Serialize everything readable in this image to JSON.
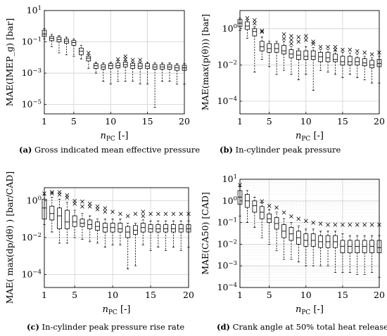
{
  "captions": {
    "a": {
      "label": "(a)",
      "text": "Gross indicated mean effective pressure"
    },
    "b": {
      "label": "(b)",
      "text": "In-cylinder peak pressure"
    },
    "c": {
      "label": "(c)",
      "text": "In-cylinder peak pressure rise rate"
    },
    "d": {
      "label": "(d)",
      "text": "Crank angle at 50% total heat release"
    }
  },
  "chart_data": [
    {
      "id": "a",
      "type": "box",
      "title": "",
      "xlabel": "n_PC [-]",
      "ylabel": "MAE(IMEP_g) [bar]",
      "yscale": "log",
      "xlim": [
        1,
        20
      ],
      "ylim": [
        2.5e-06,
        10
      ],
      "xticks": [
        1,
        5,
        10,
        15,
        20
      ],
      "yticks": [
        1e-05,
        0.001,
        0.1,
        10
      ],
      "ytick_labels": [
        "10^-5",
        "10^-3",
        "10^-1",
        "10^1"
      ],
      "grid": "major",
      "boxes": [
        {
          "x": 1,
          "q1": 0.22,
          "med": 0.32,
          "q3": 0.55,
          "lo": 0.15,
          "hi": 0.7,
          "out": []
        },
        {
          "x": 2,
          "q1": 0.12,
          "med": 0.17,
          "q3": 0.22,
          "lo": 0.05,
          "hi": 0.3,
          "out": []
        },
        {
          "x": 3,
          "q1": 0.1,
          "med": 0.14,
          "q3": 0.2,
          "lo": 0.02,
          "hi": 0.25,
          "out": []
        },
        {
          "x": 4,
          "q1": 0.08,
          "med": 0.11,
          "q3": 0.15,
          "lo": 0.015,
          "hi": 0.2,
          "out": []
        },
        {
          "x": 5,
          "q1": 0.06,
          "med": 0.09,
          "q3": 0.12,
          "lo": 0.012,
          "hi": 0.15,
          "out": []
        },
        {
          "x": 6,
          "q1": 0.015,
          "med": 0.025,
          "q3": 0.04,
          "lo": 0.008,
          "hi": 0.06,
          "out": []
        },
        {
          "x": 7,
          "q1": 0.006,
          "med": 0.009,
          "q3": 0.012,
          "lo": 0.002,
          "hi": 0.015,
          "out": [
            0.02
          ]
        },
        {
          "x": 8,
          "q1": 0.002,
          "med": 0.003,
          "q3": 0.004,
          "lo": 0.001,
          "hi": 0.005,
          "out": []
        },
        {
          "x": 9,
          "q1": 0.0018,
          "med": 0.0025,
          "q3": 0.0035,
          "lo": 0.0003,
          "hi": 0.0045,
          "out": []
        },
        {
          "x": 10,
          "q1": 0.002,
          "med": 0.003,
          "q3": 0.004,
          "lo": 0.0002,
          "hi": 0.005,
          "out": []
        },
        {
          "x": 11,
          "q1": 0.0022,
          "med": 0.003,
          "q3": 0.0045,
          "lo": 0.0003,
          "hi": 0.006,
          "out": [
            0.008
          ]
        },
        {
          "x": 12,
          "q1": 0.0025,
          "med": 0.0035,
          "q3": 0.005,
          "lo": 0.0003,
          "hi": 0.006,
          "out": [
            0.008,
            0.012
          ]
        },
        {
          "x": 13,
          "q1": 0.002,
          "med": 0.003,
          "q3": 0.0042,
          "lo": 0.0003,
          "hi": 0.005,
          "out": [
            0.007
          ]
        },
        {
          "x": 14,
          "q1": 0.002,
          "med": 0.0028,
          "q3": 0.0042,
          "lo": 0.0002,
          "hi": 0.005,
          "out": [
            0.007
          ]
        },
        {
          "x": 15,
          "q1": 0.002,
          "med": 0.0028,
          "q3": 0.004,
          "lo": 0.0002,
          "hi": 0.005,
          "out": []
        },
        {
          "x": 16,
          "q1": 0.0018,
          "med": 0.0025,
          "q3": 0.0035,
          "lo": 6.5e-06,
          "hi": 0.0045,
          "out": []
        },
        {
          "x": 17,
          "q1": 0.0018,
          "med": 0.0025,
          "q3": 0.0035,
          "lo": 0.0003,
          "hi": 0.0045,
          "out": []
        },
        {
          "x": 18,
          "q1": 0.0018,
          "med": 0.0025,
          "q3": 0.0035,
          "lo": 0.0003,
          "hi": 0.0045,
          "out": []
        },
        {
          "x": 19,
          "q1": 0.0015,
          "med": 0.0022,
          "q3": 0.0032,
          "lo": 0.0002,
          "hi": 0.004,
          "out": []
        },
        {
          "x": 20,
          "q1": 0.0015,
          "med": 0.0022,
          "q3": 0.0032,
          "lo": 0.0002,
          "hi": 0.004,
          "out": []
        }
      ]
    },
    {
      "id": "b",
      "type": "box",
      "title": "",
      "xlabel": "n_PC [-]",
      "ylabel": "MAE(max(p(θ))) [bar]",
      "yscale": "log",
      "xlim": [
        1,
        20
      ],
      "ylim": [
        2e-05,
        10
      ],
      "xticks": [
        1,
        5,
        10,
        15,
        20
      ],
      "yticks": [
        0.0001,
        0.01,
        1
      ],
      "ytick_labels": [
        "10^-4",
        "10^-2",
        "10^0"
      ],
      "grid": "major",
      "boxes": [
        {
          "x": 1,
          "q1": 1.3,
          "med": 2.0,
          "q3": 3.2,
          "lo": 0.8,
          "hi": 3.8,
          "out": []
        },
        {
          "x": 2,
          "q1": 0.9,
          "med": 1.4,
          "q3": 2.4,
          "lo": 0.3,
          "hi": 3.0,
          "out": [
            4.0
          ]
        },
        {
          "x": 3,
          "q1": 0.4,
          "med": 0.7,
          "q3": 1.0,
          "lo": 0.004,
          "hi": 1.3,
          "out": [
            2.0,
            3.0
          ]
        },
        {
          "x": 4,
          "q1": 0.06,
          "med": 0.1,
          "q3": 0.2,
          "lo": 0.02,
          "hi": 0.35,
          "out": [
            0.7,
            0.8
          ]
        },
        {
          "x": 5,
          "q1": 0.05,
          "med": 0.08,
          "q3": 0.15,
          "lo": 0.008,
          "hi": 0.2,
          "out": []
        },
        {
          "x": 6,
          "q1": 0.05,
          "med": 0.08,
          "q3": 0.15,
          "lo": 0.003,
          "hi": 0.2,
          "out": []
        },
        {
          "x": 7,
          "q1": 0.04,
          "med": 0.06,
          "q3": 0.12,
          "lo": 0.005,
          "hi": 0.2,
          "out": [
            0.3,
            0.5
          ]
        },
        {
          "x": 8,
          "q1": 0.025,
          "med": 0.04,
          "q3": 0.07,
          "lo": 0.003,
          "hi": 0.1,
          "out": [
            0.15,
            0.25,
            0.4
          ]
        },
        {
          "x": 9,
          "q1": 0.02,
          "med": 0.035,
          "q3": 0.06,
          "lo": 0.0015,
          "hi": 0.08,
          "out": [
            0.2,
            0.35
          ]
        },
        {
          "x": 10,
          "q1": 0.02,
          "med": 0.03,
          "q3": 0.06,
          "lo": 0.003,
          "hi": 0.1,
          "out": [
            0.25,
            0.4
          ]
        },
        {
          "x": 11,
          "q1": 0.02,
          "med": 0.03,
          "q3": 0.06,
          "lo": 0.0004,
          "hi": 0.09,
          "out": [
            0.15,
            0.2
          ]
        },
        {
          "x": 12,
          "q1": 0.015,
          "med": 0.028,
          "q3": 0.05,
          "lo": 0.005,
          "hi": 0.07,
          "out": [
            0.1
          ]
        },
        {
          "x": 13,
          "q1": 0.015,
          "med": 0.025,
          "q3": 0.05,
          "lo": 0.004,
          "hi": 0.07,
          "out": [
            0.1
          ]
        },
        {
          "x": 14,
          "q1": 0.015,
          "med": 0.02,
          "q3": 0.04,
          "lo": 0.003,
          "hi": 0.06,
          "out": [
            0.07,
            0.1
          ]
        },
        {
          "x": 15,
          "q1": 0.01,
          "med": 0.015,
          "q3": 0.03,
          "lo": 0.002,
          "hi": 0.05,
          "out": [
            0.07
          ]
        },
        {
          "x": 16,
          "q1": 0.01,
          "med": 0.015,
          "q3": 0.03,
          "lo": 0.003,
          "hi": 0.045,
          "out": [
            0.07
          ]
        },
        {
          "x": 17,
          "q1": 0.01,
          "med": 0.015,
          "q3": 0.025,
          "lo": 0.002,
          "hi": 0.04,
          "out": [
            0.06
          ]
        },
        {
          "x": 18,
          "q1": 0.009,
          "med": 0.013,
          "q3": 0.022,
          "lo": 0.0015,
          "hi": 0.03,
          "out": [
            0.05
          ]
        },
        {
          "x": 19,
          "q1": 0.007,
          "med": 0.01,
          "q3": 0.018,
          "lo": 0.001,
          "hi": 0.025,
          "out": [
            0.04
          ]
        },
        {
          "x": 20,
          "q1": 0.008,
          "med": 0.012,
          "q3": 0.02,
          "lo": 0.001,
          "hi": 0.03,
          "out": [
            0.05
          ]
        }
      ]
    },
    {
      "id": "c",
      "type": "box",
      "title": "",
      "xlabel": "n_PC [-]",
      "ylabel": "MAE( max(dp/dθ) ) [bar/CAD]",
      "yscale": "log",
      "xlim": [
        1,
        20
      ],
      "ylim": [
        2e-05,
        5
      ],
      "xticks": [
        1,
        5,
        10,
        15,
        20
      ],
      "yticks": [
        0.0001,
        0.01,
        1
      ],
      "ytick_labels": [
        "10^-4",
        "10^-2",
        "10^0"
      ],
      "grid": "major",
      "boxes": [
        {
          "x": 1,
          "q1": 0.1,
          "med": 0.4,
          "q3": 1.2,
          "lo": 0.05,
          "hi": 2.0,
          "out": [
            2.5
          ]
        },
        {
          "x": 2,
          "q1": 0.09,
          "med": 0.2,
          "q3": 0.5,
          "lo": 0.02,
          "hi": 1.5,
          "out": [
            2.5,
            3.0
          ]
        },
        {
          "x": 3,
          "q1": 0.03,
          "med": 0.15,
          "q3": 0.4,
          "lo": 0.005,
          "hi": 1.2,
          "out": [
            2.2,
            3.0
          ]
        },
        {
          "x": 4,
          "q1": 0.03,
          "med": 0.07,
          "q3": 0.3,
          "lo": 0.005,
          "hi": 0.8,
          "out": [
            1.5,
            2.0
          ]
        },
        {
          "x": 5,
          "q1": 0.04,
          "med": 0.07,
          "q3": 0.15,
          "lo": 0.01,
          "hi": 0.3,
          "out": [
            0.7,
            1.0
          ]
        },
        {
          "x": 6,
          "q1": 0.04,
          "med": 0.06,
          "q3": 0.1,
          "lo": 0.008,
          "hi": 0.2,
          "out": [
            0.5,
            0.9
          ]
        },
        {
          "x": 7,
          "q1": 0.03,
          "med": 0.05,
          "q3": 0.09,
          "lo": 0.006,
          "hi": 0.15,
          "out": [
            0.5,
            0.7
          ]
        },
        {
          "x": 8,
          "q1": 0.025,
          "med": 0.04,
          "q3": 0.07,
          "lo": 0.005,
          "hi": 0.1,
          "out": [
            0.35,
            0.5
          ]
        },
        {
          "x": 9,
          "q1": 0.02,
          "med": 0.035,
          "q3": 0.06,
          "lo": 0.003,
          "hi": 0.1,
          "out": [
            0.25,
            0.4
          ]
        },
        {
          "x": 10,
          "q1": 0.02,
          "med": 0.035,
          "q3": 0.06,
          "lo": 0.004,
          "hi": 0.1,
          "out": [
            0.25
          ]
        },
        {
          "x": 11,
          "q1": 0.02,
          "med": 0.03,
          "q3": 0.06,
          "lo": 0.004,
          "hi": 0.1,
          "out": [
            0.2
          ]
        },
        {
          "x": 12,
          "q1": 0.01,
          "med": 0.02,
          "q3": 0.04,
          "lo": 0.0002,
          "hi": 0.06,
          "out": [
            0.15
          ]
        },
        {
          "x": 13,
          "q1": 0.015,
          "med": 0.025,
          "q3": 0.045,
          "lo": 0.0003,
          "hi": 0.06,
          "out": [
            0.2
          ]
        },
        {
          "x": 14,
          "q1": 0.02,
          "med": 0.035,
          "q3": 0.06,
          "lo": 0.004,
          "hi": 0.09,
          "out": [
            0.15,
            0.25
          ]
        },
        {
          "x": 15,
          "q1": 0.02,
          "med": 0.03,
          "q3": 0.05,
          "lo": 0.002,
          "hi": 0.08,
          "out": [
            0.2
          ]
        },
        {
          "x": 16,
          "q1": 0.02,
          "med": 0.03,
          "q3": 0.05,
          "lo": 0.003,
          "hi": 0.08,
          "out": [
            0.2
          ]
        },
        {
          "x": 17,
          "q1": 0.02,
          "med": 0.03,
          "q3": 0.05,
          "lo": 0.002,
          "hi": 0.08,
          "out": [
            0.2
          ]
        },
        {
          "x": 18,
          "q1": 0.02,
          "med": 0.03,
          "q3": 0.05,
          "lo": 0.003,
          "hi": 0.08,
          "out": [
            0.2
          ]
        },
        {
          "x": 19,
          "q1": 0.02,
          "med": 0.03,
          "q3": 0.05,
          "lo": 0.002,
          "hi": 0.08,
          "out": [
            0.2
          ]
        },
        {
          "x": 20,
          "q1": 0.02,
          "med": 0.03,
          "q3": 0.05,
          "lo": 0.003,
          "hi": 0.08,
          "out": [
            0.2
          ]
        }
      ]
    },
    {
      "id": "d",
      "type": "box",
      "title": "",
      "xlabel": "n_PC [-]",
      "ylabel": "MAE(CA50) [CAD]",
      "yscale": "log",
      "xlim": [
        1,
        20
      ],
      "ylim": [
        0.0001,
        10
      ],
      "xticks": [
        1,
        5,
        10,
        15,
        20
      ],
      "yticks": [
        0.0001,
        0.001,
        0.01,
        0.1,
        1,
        10
      ],
      "ytick_labels": [
        "10^-4",
        "10^-3",
        "10^-2",
        "10^-1",
        "10^0",
        "10^1"
      ],
      "grid": "major+minor",
      "boxes": [
        {
          "x": 1,
          "q1": 0.7,
          "med": 1.5,
          "q3": 3.0,
          "lo": 0.2,
          "hi": 4.5,
          "out": [
            5.5
          ]
        },
        {
          "x": 2,
          "q1": 0.5,
          "med": 1.0,
          "q3": 2.0,
          "lo": 0.1,
          "hi": 3.0,
          "out": []
        },
        {
          "x": 3,
          "q1": 0.3,
          "med": 0.6,
          "q3": 1.0,
          "lo": 0.06,
          "hi": 1.5,
          "out": []
        },
        {
          "x": 4,
          "q1": 0.15,
          "med": 0.3,
          "q3": 0.55,
          "lo": 0.02,
          "hi": 0.8,
          "out": [
            1.0
          ]
        },
        {
          "x": 5,
          "q1": 0.1,
          "med": 0.15,
          "q3": 0.25,
          "lo": 0.01,
          "hi": 0.4,
          "out": [
            0.6
          ]
        },
        {
          "x": 6,
          "q1": 0.05,
          "med": 0.09,
          "q3": 0.17,
          "lo": 0.005,
          "hi": 0.3,
          "out": [
            0.5
          ]
        },
        {
          "x": 7,
          "q1": 0.02,
          "med": 0.04,
          "q3": 0.08,
          "lo": 0.002,
          "hi": 0.15,
          "out": [
            0.3
          ]
        },
        {
          "x": 8,
          "q1": 0.015,
          "med": 0.03,
          "q3": 0.06,
          "lo": 0.002,
          "hi": 0.1,
          "out": [
            0.2
          ]
        },
        {
          "x": 9,
          "q1": 0.01,
          "med": 0.02,
          "q3": 0.04,
          "lo": 0.0015,
          "hi": 0.07,
          "out": [
            0.15
          ]
        },
        {
          "x": 10,
          "q1": 0.008,
          "med": 0.015,
          "q3": 0.03,
          "lo": 0.001,
          "hi": 0.05,
          "out": [
            0.12
          ]
        },
        {
          "x": 11,
          "q1": 0.008,
          "med": 0.015,
          "q3": 0.03,
          "lo": 0.001,
          "hi": 0.05,
          "out": [
            0.1
          ]
        },
        {
          "x": 12,
          "q1": 0.007,
          "med": 0.013,
          "q3": 0.025,
          "lo": 0.001,
          "hi": 0.04,
          "out": [
            0.09
          ]
        },
        {
          "x": 13,
          "q1": 0.007,
          "med": 0.013,
          "q3": 0.025,
          "lo": 0.001,
          "hi": 0.04,
          "out": [
            0.08
          ]
        },
        {
          "x": 14,
          "q1": 0.007,
          "med": 0.013,
          "q3": 0.025,
          "lo": 0.0005,
          "hi": 0.04,
          "out": [
            0.08
          ]
        },
        {
          "x": 15,
          "q1": 0.004,
          "med": 0.008,
          "q3": 0.015,
          "lo": 0.0005,
          "hi": 0.03,
          "out": [
            0.08
          ]
        },
        {
          "x": 16,
          "q1": 0.004,
          "med": 0.008,
          "q3": 0.015,
          "lo": 0.0005,
          "hi": 0.025,
          "out": [
            0.08
          ]
        },
        {
          "x": 17,
          "q1": 0.004,
          "med": 0.008,
          "q3": 0.015,
          "lo": 0.0004,
          "hi": 0.025,
          "out": [
            0.08
          ]
        },
        {
          "x": 18,
          "q1": 0.004,
          "med": 0.008,
          "q3": 0.015,
          "lo": 0.0004,
          "hi": 0.025,
          "out": [
            0.08
          ]
        },
        {
          "x": 19,
          "q1": 0.004,
          "med": 0.008,
          "q3": 0.015,
          "lo": 0.0005,
          "hi": 0.025,
          "out": [
            0.08
          ]
        },
        {
          "x": 20,
          "q1": 0.004,
          "med": 0.007,
          "q3": 0.015,
          "lo": 0.0003,
          "hi": 0.025,
          "out": [
            0.08
          ]
        }
      ]
    }
  ]
}
